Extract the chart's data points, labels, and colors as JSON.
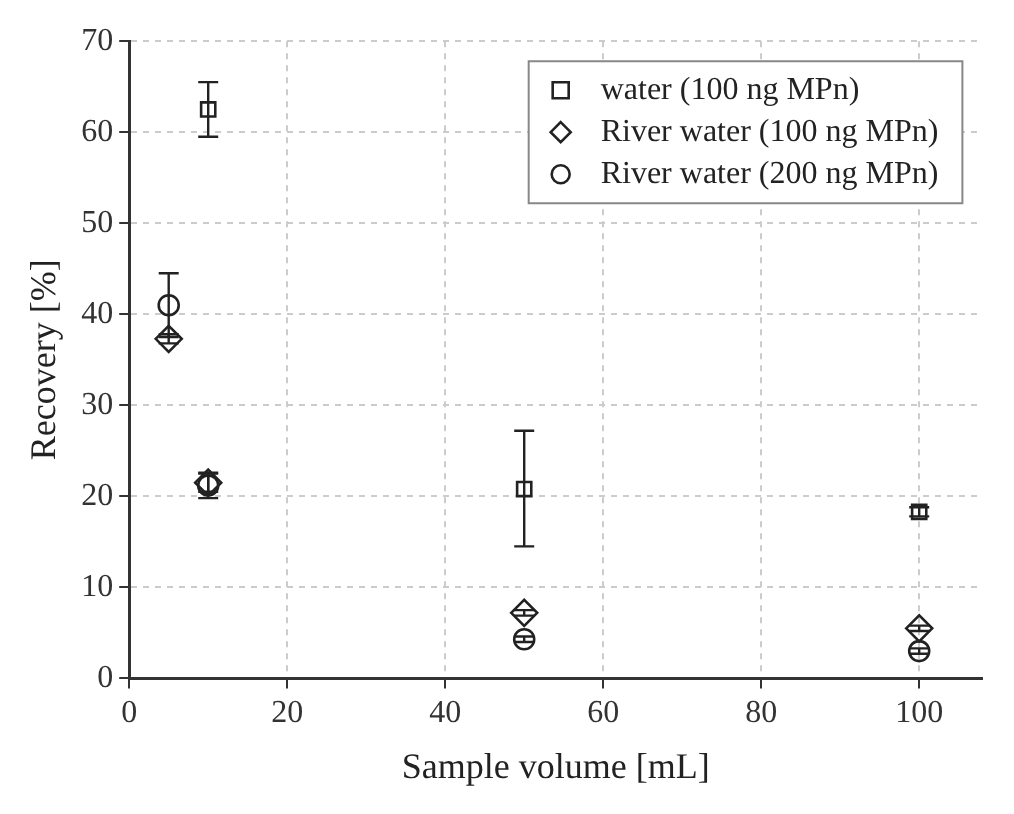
{
  "chart_data": {
    "type": "scatter",
    "xlabel": "Sample volume [mL]",
    "ylabel": "Recovery [%]",
    "xlim": [
      0,
      108
    ],
    "xticks": [
      0,
      20,
      40,
      60,
      80,
      100
    ],
    "ylim": [
      0,
      70
    ],
    "yticks": [
      0,
      10,
      20,
      30,
      40,
      50,
      60,
      70
    ],
    "grid": true,
    "legend": "top right",
    "series": [
      {
        "name": "water (100 ng MPn)",
        "color": "#222222",
        "marker": "square",
        "x": [
          10,
          50,
          100
        ],
        "values": [
          62.5,
          20.8,
          18.3
        ],
        "errors": [
          3,
          [
            14.5,
            27.2
          ],
          0.5
        ]
      },
      {
        "name": "River water (100 ng MPn)",
        "color": "#222222",
        "marker": "diamond",
        "x": [
          5,
          10,
          50,
          100
        ],
        "values": [
          37.3,
          21.5,
          7.2,
          5.5
        ],
        "errors": [
          0.5,
          1,
          0.3,
          0.3
        ]
      },
      {
        "name": "River water (200 ng MPn)",
        "color": "#222222",
        "marker": "circle",
        "x": [
          5,
          10,
          50,
          100
        ],
        "values": [
          41,
          21.2,
          4.3,
          3.0
        ],
        "errors": [
          3.5,
          1.4,
          0.3,
          0.3
        ]
      }
    ]
  }
}
